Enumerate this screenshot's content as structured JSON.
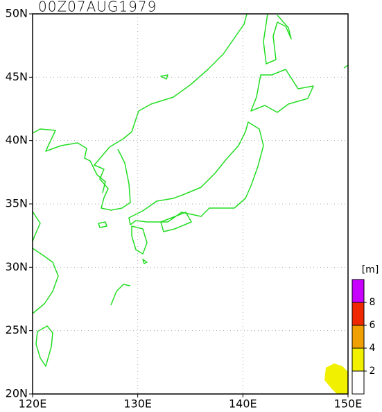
{
  "map": {
    "title": "00Z07AUG1979",
    "xlim": [
      120,
      150
    ],
    "ylim": [
      20,
      50
    ],
    "xticks": [
      {
        "value": 120,
        "label": "120E"
      },
      {
        "value": 130,
        "label": "130E"
      },
      {
        "value": 140,
        "label": "140E"
      },
      {
        "value": 150,
        "label": "150E"
      }
    ],
    "yticks": [
      {
        "value": 20,
        "label": "20N"
      },
      {
        "value": 25,
        "label": "25N"
      },
      {
        "value": 30,
        "label": "30N"
      },
      {
        "value": 35,
        "label": "35N"
      },
      {
        "value": 40,
        "label": "40N"
      },
      {
        "value": 45,
        "label": "45N"
      },
      {
        "value": 50,
        "label": "50N"
      }
    ],
    "grid": true,
    "colorbar": {
      "unit": "[m]",
      "levels": [
        2,
        4,
        6,
        8
      ],
      "colors": [
        "#ffffff",
        "#f0f000",
        "#f0a000",
        "#f02800",
        "#c800ff"
      ]
    }
  }
}
